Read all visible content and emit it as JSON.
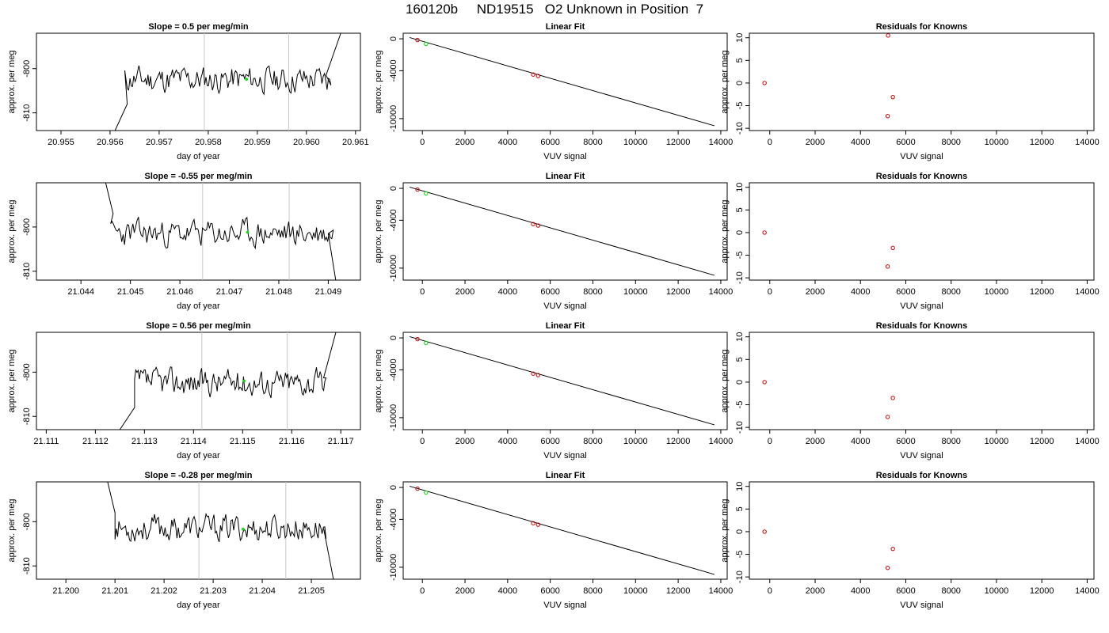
{
  "page_title": "160120b     ND19515   O2 Unknown in Position  7",
  "colors": {
    "line": "#000000",
    "gridline": "#c8c8c8",
    "known_point": "#cc0000",
    "unknown_point": "#00dd00"
  },
  "chart_data": [
    {
      "type": "line",
      "title": "Slope =  0.5  per meg/min",
      "xlabel": "day of year",
      "ylabel": "approx. per meg",
      "xlim": [
        20.9545,
        20.9611
      ],
      "ylim": [
        -814,
        -792
      ],
      "xticks": [
        "20.955",
        "20.956",
        "20.957",
        "20.958",
        "20.959",
        "20.960",
        "20.961"
      ],
      "xtick_values": [
        20.955,
        20.956,
        20.957,
        20.958,
        20.959,
        20.96,
        20.961
      ],
      "yticks": [
        "-800",
        "-810"
      ],
      "ytick_values": [
        -800,
        -810
      ],
      "vlines": [
        20.95792,
        20.95964
      ],
      "trace": {
        "start": 20.9563,
        "end": 20.9605,
        "base": -802.5,
        "noise": 1.6,
        "seed": 11,
        "rise_start": 20.9604,
        "rise_end": 20.9607,
        "rise_to": -792,
        "drop_start": 20.9561,
        "drop_end": 20.95635,
        "drop_from": -814,
        "drop_to": -808
      },
      "highlight": {
        "x": 20.95878,
        "y": -802.4
      }
    },
    {
      "type": "scatter",
      "title": "Linear Fit",
      "xlabel": "VUV signal",
      "ylabel": "approx. per meg",
      "xlim": [
        -900,
        14300
      ],
      "ylim": [
        -11500,
        700
      ],
      "xticks": [
        "0",
        "2000",
        "4000",
        "6000",
        "8000",
        "10000",
        "12000",
        "14000"
      ],
      "xtick_values": [
        0,
        2000,
        4000,
        6000,
        8000,
        10000,
        12000,
        14000
      ],
      "yticks": [
        "0",
        "-4000",
        "-10000"
      ],
      "ytick_values": [
        0,
        -4000,
        -10000
      ],
      "fit_line": [
        [
          -600,
          160
        ],
        [
          13700,
          -10900
        ]
      ],
      "points": [
        {
          "x": -230,
          "y": -150
        },
        {
          "x": 5200,
          "y": -4480
        },
        {
          "x": 5430,
          "y": -4660
        }
      ],
      "highlight": [
        {
          "x": 170,
          "y": -640
        }
      ]
    },
    {
      "type": "scatter",
      "title": "Residuals for Knowns",
      "xlabel": "VUV signal",
      "ylabel": "approx. per meg",
      "xlim": [
        -900,
        14300
      ],
      "ylim": [
        -10.5,
        11
      ],
      "xticks": [
        "0",
        "2000",
        "4000",
        "6000",
        "8000",
        "10000",
        "12000",
        "14000"
      ],
      "xtick_values": [
        0,
        2000,
        4000,
        6000,
        8000,
        10000,
        12000,
        14000
      ],
      "yticks": [
        "10",
        "5",
        "0",
        "-5",
        "-10"
      ],
      "ytick_values": [
        10,
        5,
        0,
        -5,
        -10
      ],
      "points": [
        {
          "x": -230,
          "y": 0
        },
        {
          "x": 5220,
          "y": 10.5
        },
        {
          "x": 5430,
          "y": -3.1
        },
        {
          "x": 5200,
          "y": -7.3
        }
      ]
    },
    {
      "type": "line",
      "title": "Slope =  -0.55  per meg/min",
      "xlabel": "day of year",
      "ylabel": "approx. per meg",
      "xlim": [
        21.0431,
        21.04965
      ],
      "ylim": [
        -812,
        -790
      ],
      "xticks": [
        "21.044",
        "21.045",
        "21.046",
        "21.047",
        "21.048",
        "21.049"
      ],
      "xtick_values": [
        21.044,
        21.045,
        21.046,
        21.047,
        21.048,
        21.049
      ],
      "yticks": [
        "-800",
        "-810"
      ],
      "ytick_values": [
        -800,
        -810
      ],
      "vlines": [
        21.04646,
        21.04821
      ],
      "trace": {
        "start": 21.0446,
        "end": 21.0491,
        "base": -801.5,
        "noise": 1.6,
        "seed": 23,
        "rise_start": 21.04455,
        "rise_end": 21.0446,
        "rise_to": -790,
        "drop_start": 21.0445,
        "drop_end": 21.04465,
        "drop_from": -790,
        "drop_to": -797,
        "tail_start": 21.049,
        "tail_end": 21.04915,
        "tail_to": -812
      },
      "highlight": {
        "x": 21.04737,
        "y": -801.2
      }
    },
    {
      "type": "scatter",
      "title": "Linear Fit",
      "xlabel": "VUV signal",
      "ylabel": "approx. per meg",
      "xlim": [
        -900,
        14300
      ],
      "ylim": [
        -11500,
        700
      ],
      "xticks": [
        "0",
        "2000",
        "4000",
        "6000",
        "8000",
        "10000",
        "12000",
        "14000"
      ],
      "xtick_values": [
        0,
        2000,
        4000,
        6000,
        8000,
        10000,
        12000,
        14000
      ],
      "yticks": [
        "0",
        "-4000",
        "-10000"
      ],
      "ytick_values": [
        0,
        -4000,
        -10000
      ],
      "fit_line": [
        [
          -600,
          160
        ],
        [
          13700,
          -10900
        ]
      ],
      "points": [
        {
          "x": -230,
          "y": -150
        },
        {
          "x": 5200,
          "y": -4480
        },
        {
          "x": 5430,
          "y": -4660
        }
      ],
      "highlight": [
        {
          "x": 170,
          "y": -640
        }
      ]
    },
    {
      "type": "scatter",
      "title": "Residuals for Knowns",
      "xlabel": "VUV signal",
      "ylabel": "approx. per meg",
      "xlim": [
        -900,
        14300
      ],
      "ylim": [
        -10.5,
        11
      ],
      "xticks": [
        "0",
        "2000",
        "4000",
        "6000",
        "8000",
        "10000",
        "12000",
        "14000"
      ],
      "xtick_values": [
        0,
        2000,
        4000,
        6000,
        8000,
        10000,
        12000,
        14000
      ],
      "yticks": [
        "10",
        "5",
        "0",
        "-5",
        "-10"
      ],
      "ytick_values": [
        10,
        5,
        0,
        -5,
        -10
      ],
      "points": [
        {
          "x": -230,
          "y": 0
        },
        {
          "x": 5430,
          "y": -3.4
        },
        {
          "x": 5200,
          "y": -7.5
        }
      ]
    },
    {
      "type": "line",
      "title": "Slope =  0.56  per meg/min",
      "xlabel": "day of year",
      "ylabel": "approx. per meg",
      "xlim": [
        21.1108,
        21.1174
      ],
      "ylim": [
        -813,
        -791
      ],
      "xticks": [
        "21.111",
        "21.112",
        "21.113",
        "21.114",
        "21.115",
        "21.116",
        "21.117"
      ],
      "xtick_values": [
        21.111,
        21.112,
        21.113,
        21.114,
        21.115,
        21.116,
        21.117
      ],
      "yticks": [
        "-800",
        "-810"
      ],
      "ytick_values": [
        -800,
        -810
      ],
      "vlines": [
        21.11417,
        21.11591
      ],
      "trace": {
        "start": 21.1128,
        "end": 21.1167,
        "base": -802.3,
        "noise": 1.6,
        "seed": 37,
        "rise_start": 21.11665,
        "rise_end": 21.1169,
        "rise_to": -791,
        "drop_start": 21.1125,
        "drop_end": 21.1128,
        "drop_from": -813,
        "drop_to": -808
      },
      "highlight": {
        "x": 21.11503,
        "y": -802.0
      }
    },
    {
      "type": "scatter",
      "title": "Linear Fit",
      "xlabel": "VUV signal",
      "ylabel": "approx. per meg",
      "xlim": [
        -900,
        14300
      ],
      "ylim": [
        -11500,
        700
      ],
      "xticks": [
        "0",
        "2000",
        "4000",
        "6000",
        "8000",
        "10000",
        "12000",
        "14000"
      ],
      "xtick_values": [
        0,
        2000,
        4000,
        6000,
        8000,
        10000,
        12000,
        14000
      ],
      "yticks": [
        "0",
        "-4000",
        "-10000"
      ],
      "ytick_values": [
        0,
        -4000,
        -10000
      ],
      "fit_line": [
        [
          -600,
          160
        ],
        [
          13700,
          -10900
        ]
      ],
      "points": [
        {
          "x": -230,
          "y": -150
        },
        {
          "x": 5200,
          "y": -4480
        },
        {
          "x": 5430,
          "y": -4660
        }
      ],
      "highlight": [
        {
          "x": 170,
          "y": -640
        }
      ]
    },
    {
      "type": "scatter",
      "title": "Residuals for Knowns",
      "xlabel": "VUV signal",
      "ylabel": "approx. per meg",
      "xlim": [
        -900,
        14300
      ],
      "ylim": [
        -10.5,
        11
      ],
      "xticks": [
        "0",
        "2000",
        "4000",
        "6000",
        "8000",
        "10000",
        "12000",
        "14000"
      ],
      "xtick_values": [
        0,
        2000,
        4000,
        6000,
        8000,
        10000,
        12000,
        14000
      ],
      "yticks": [
        "10",
        "5",
        "0",
        "-5",
        "-10"
      ],
      "ytick_values": [
        10,
        5,
        0,
        -5,
        -10
      ],
      "points": [
        {
          "x": -230,
          "y": 0
        },
        {
          "x": 5430,
          "y": -3.5
        },
        {
          "x": 5200,
          "y": -7.7
        }
      ]
    },
    {
      "type": "line",
      "title": "Slope =  -0.28  per meg/min",
      "xlabel": "day of year",
      "ylabel": "approx. per meg",
      "xlim": [
        21.1994,
        21.206
      ],
      "ylim": [
        -813,
        -791
      ],
      "xticks": [
        "21.200",
        "21.201",
        "21.202",
        "21.203",
        "21.204",
        "21.205"
      ],
      "xtick_values": [
        21.2,
        21.201,
        21.202,
        21.203,
        21.204,
        21.205
      ],
      "yticks": [
        "-800",
        "-810"
      ],
      "ytick_values": [
        -800,
        -810
      ],
      "vlines": [
        21.20271,
        21.20448
      ],
      "trace": {
        "start": 21.201,
        "end": 21.2053,
        "base": -801.5,
        "noise": 1.6,
        "seed": 53,
        "rise_start": 21.20085,
        "rise_end": 21.201,
        "rise_to": -791,
        "drop_start": 21.20085,
        "drop_end": 21.201,
        "drop_from": -791,
        "drop_to": -798,
        "tail_start": 21.20525,
        "tail_end": 21.20545,
        "tail_to": -813
      },
      "highlight": {
        "x": 21.20361,
        "y": -801.7
      }
    },
    {
      "type": "scatter",
      "title": "Linear Fit",
      "xlabel": "VUV signal",
      "ylabel": "approx. per meg",
      "xlim": [
        -900,
        14300
      ],
      "ylim": [
        -11500,
        700
      ],
      "xticks": [
        "0",
        "2000",
        "4000",
        "6000",
        "8000",
        "10000",
        "12000",
        "14000"
      ],
      "xtick_values": [
        0,
        2000,
        4000,
        6000,
        8000,
        10000,
        12000,
        14000
      ],
      "yticks": [
        "0",
        "-4000",
        "-10000"
      ],
      "ytick_values": [
        0,
        -4000,
        -10000
      ],
      "fit_line": [
        [
          -600,
          160
        ],
        [
          13700,
          -10900
        ]
      ],
      "points": [
        {
          "x": -230,
          "y": -150
        },
        {
          "x": 5200,
          "y": -4480
        },
        {
          "x": 5430,
          "y": -4660
        }
      ],
      "highlight": [
        {
          "x": 170,
          "y": -640
        }
      ]
    },
    {
      "type": "scatter",
      "title": "Residuals for Knowns",
      "xlabel": "VUV signal",
      "ylabel": "approx. per meg",
      "xlim": [
        -900,
        14300
      ],
      "ylim": [
        -10.5,
        11
      ],
      "xticks": [
        "0",
        "2000",
        "4000",
        "6000",
        "8000",
        "10000",
        "12000",
        "14000"
      ],
      "xtick_values": [
        0,
        2000,
        4000,
        6000,
        8000,
        10000,
        12000,
        14000
      ],
      "yticks": [
        "10",
        "5",
        "0",
        "-5",
        "-10"
      ],
      "ytick_values": [
        10,
        5,
        0,
        -5,
        -10
      ],
      "points": [
        {
          "x": -230,
          "y": 0
        },
        {
          "x": 5430,
          "y": -3.8
        },
        {
          "x": 5200,
          "y": -8.0
        }
      ]
    }
  ]
}
